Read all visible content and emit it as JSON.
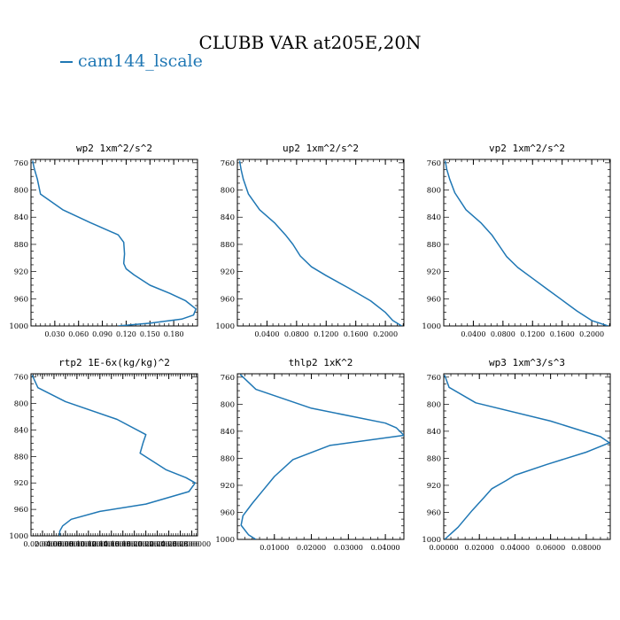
{
  "figure": {
    "title": "CLUBB VAR at205E,20N",
    "legend_label": "cam144_lscale",
    "line_color": "#1f77b4"
  },
  "chart_data": [
    {
      "type": "line",
      "title": "wp2   1xm^2/s^2",
      "xlabel": "",
      "ylabel": "",
      "xlim": [
        0.0,
        0.21
      ],
      "ylim": [
        1000,
        755
      ],
      "xticks": [
        0.03,
        0.06,
        0.09,
        0.12,
        0.15,
        0.18
      ],
      "xticklabels": [
        "0.030",
        "0.060",
        "0.090",
        "0.120",
        "0.150",
        "0.180"
      ],
      "yticks": [
        760,
        800,
        840,
        880,
        920,
        960,
        1000
      ],
      "series": [
        {
          "x": [
            0.002,
            0.004,
            0.008,
            0.012,
            0.04,
            0.075,
            0.11,
            0.117,
            0.118,
            0.117,
            0.12,
            0.13,
            0.15,
            0.175,
            0.195,
            0.208,
            0.205,
            0.19,
            0.15,
            0.11
          ],
          "y": [
            757,
            768,
            784,
            806,
            829,
            848,
            866,
            877,
            894,
            908,
            916,
            925,
            940,
            952,
            963,
            975,
            984,
            990,
            996,
            1000
          ]
        }
      ]
    },
    {
      "type": "line",
      "title": "up2   1xm^2/s^2",
      "xlabel": "",
      "ylabel": "",
      "xlim": [
        0.0,
        0.225
      ],
      "ylim": [
        1000,
        755
      ],
      "xticks": [
        0.04,
        0.08,
        0.12,
        0.16,
        0.2
      ],
      "xticklabels": [
        "0.0400",
        "0.0800",
        "0.1200",
        "0.1600",
        "0.2000"
      ],
      "yticks": [
        760,
        800,
        840,
        880,
        920,
        960,
        1000
      ],
      "series": [
        {
          "x": [
            0.003,
            0.005,
            0.008,
            0.015,
            0.03,
            0.05,
            0.065,
            0.075,
            0.085,
            0.1,
            0.12,
            0.15,
            0.18,
            0.2,
            0.21,
            0.222
          ],
          "y": [
            757,
            770,
            784,
            806,
            829,
            848,
            866,
            880,
            897,
            913,
            926,
            944,
            963,
            980,
            992,
            1000
          ]
        }
      ]
    },
    {
      "type": "line",
      "title": "vp2   1xm^2/s^2",
      "xlabel": "",
      "ylabel": "",
      "xlim": [
        0.0,
        0.225
      ],
      "ylim": [
        1000,
        755
      ],
      "xticks": [
        0.04,
        0.08,
        0.12,
        0.16,
        0.2
      ],
      "xticklabels": [
        "0.0400",
        "0.0800",
        "0.1200",
        "0.1600",
        "0.2000"
      ],
      "yticks": [
        760,
        800,
        840,
        880,
        920,
        960,
        1000
      ],
      "series": [
        {
          "x": [
            0.002,
            0.004,
            0.008,
            0.015,
            0.03,
            0.05,
            0.065,
            0.075,
            0.085,
            0.1,
            0.12,
            0.14,
            0.16,
            0.18,
            0.2,
            0.222
          ],
          "y": [
            757,
            769,
            784,
            804,
            829,
            848,
            866,
            882,
            898,
            914,
            930,
            946,
            962,
            978,
            992,
            1000
          ]
        }
      ]
    },
    {
      "type": "line",
      "title": "rtp2   1E-6x(kg/kg)^2",
      "xlabel": "",
      "ylabel": "",
      "xlim": [
        0.0,
        0.29
      ],
      "ylim": [
        1000,
        755
      ],
      "xticks": [
        0.02,
        0.04,
        0.06,
        0.08,
        0.1,
        0.12,
        0.14,
        0.16,
        0.18,
        0.2,
        0.22,
        0.24,
        0.26,
        0.28
      ],
      "xticklabels": [
        "0.0200000",
        "0.0400000",
        "0.0600000",
        "0.0800000",
        "0.1000000",
        "0.1200000",
        "0.1400000",
        "0.1600000",
        "0.1800000",
        "0.2000000",
        "0.2200000",
        "0.2400000",
        "0.2600000",
        "0.2800000"
      ],
      "yticks": [
        760,
        800,
        840,
        880,
        920,
        960,
        1000
      ],
      "series": [
        {
          "x": [
            0.002,
            0.012,
            0.06,
            0.15,
            0.2,
            0.195,
            0.19,
            0.235,
            0.27,
            0.286,
            0.275,
            0.2,
            0.12,
            0.07,
            0.055,
            0.05,
            0.05
          ],
          "y": [
            757,
            776,
            797,
            824,
            847,
            860,
            875,
            900,
            912,
            920,
            933,
            952,
            963,
            975,
            985,
            993,
            1000
          ]
        }
      ]
    },
    {
      "type": "line",
      "title": "thlp2   1xK^2",
      "xlabel": "",
      "ylabel": "",
      "xlim": [
        0.0,
        0.045
      ],
      "ylim": [
        1000,
        755
      ],
      "xticks": [
        0.01,
        0.02,
        0.03,
        0.04
      ],
      "xticklabels": [
        "0.01000",
        "0.02000",
        "0.03000",
        "0.04000"
      ],
      "yticks": [
        760,
        800,
        840,
        880,
        920,
        960,
        1000
      ],
      "series": [
        {
          "x": [
            0.0008,
            0.005,
            0.02,
            0.04,
            0.043,
            0.045,
            0.025,
            0.015,
            0.01,
            0.007,
            0.004,
            0.0015,
            0.001,
            0.003,
            0.005
          ],
          "y": [
            756,
            778,
            806,
            828,
            835,
            846,
            861,
            882,
            907,
            927,
            947,
            965,
            979,
            993,
            1000
          ]
        }
      ]
    },
    {
      "type": "line",
      "title": "wp3   1xm^3/s^3",
      "xlabel": "",
      "ylabel": "",
      "xlim": [
        0.0,
        0.0935
      ],
      "ylim": [
        1000,
        755
      ],
      "xticks": [
        0.0,
        0.02,
        0.04,
        0.06,
        0.08
      ],
      "xticklabels": [
        "0.00000",
        "0.02000",
        "0.04000",
        "0.06000",
        "0.08000"
      ],
      "yticks": [
        760,
        800,
        840,
        880,
        920,
        960,
        1000
      ],
      "series": [
        {
          "x": [
            0.0005,
            0.003,
            0.018,
            0.06,
            0.088,
            0.093,
            0.08,
            0.058,
            0.04,
            0.035,
            0.027,
            0.023,
            0.016,
            0.008,
            0.0005
          ],
          "y": [
            757,
            775,
            798,
            825,
            848,
            857,
            871,
            889,
            905,
            913,
            925,
            937,
            957,
            982,
            1000
          ]
        }
      ]
    }
  ]
}
